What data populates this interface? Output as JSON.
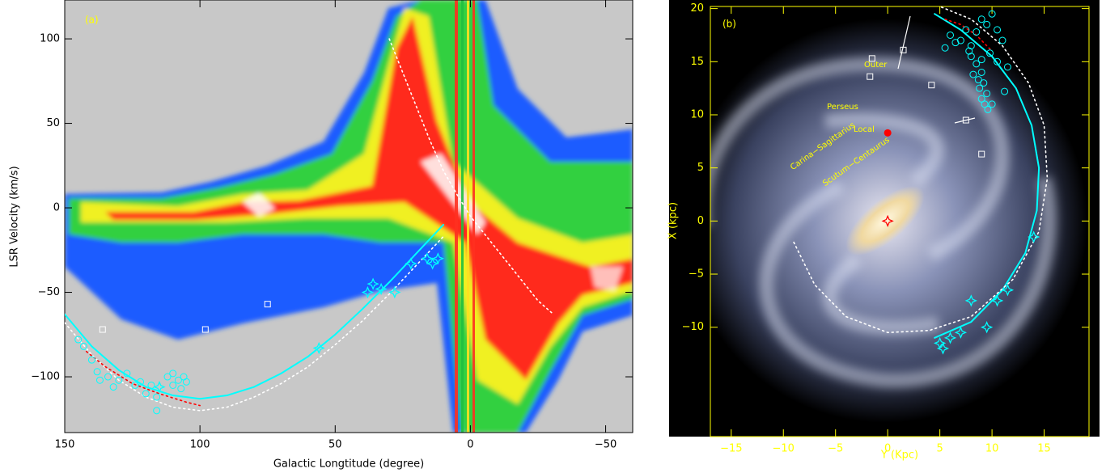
{
  "chart_data": [
    {
      "type": "scatter",
      "xlabel": "Galactic Longtitude (degree)",
      "ylabel": "LSR Velocity (km/s)",
      "annotations": [
        "(a)"
      ],
      "axis_color": "#000000",
      "annotation_color": "#ffff00",
      "xlim": [
        150,
        -60
      ],
      "ylim": [
        -133,
        123
      ],
      "xticks": [
        150,
        100,
        50,
        0,
        {
          "value": -50,
          "label": "−50"
        }
      ],
      "yticks": [
        {
          "value": -100,
          "label": "−100"
        },
        {
          "value": -50,
          "label": "−50"
        },
        0,
        50,
        100
      ],
      "series": [
        {
          "marker": "line",
          "color": "#00ffff",
          "x": [
            150,
            140,
            130,
            120,
            110,
            100,
            90,
            80,
            70,
            60,
            50,
            40,
            30,
            20,
            10
          ],
          "y": [
            -63,
            -82,
            -96,
            -106,
            -111,
            -113,
            -111,
            -106,
            -98,
            -88,
            -75,
            -60,
            -44,
            -27,
            -10
          ]
        },
        {
          "marker": "dotted",
          "color": "#ffffff",
          "x": [
            150,
            140,
            130,
            120,
            110,
            100,
            90,
            80,
            70,
            60,
            50,
            40,
            30,
            20,
            10
          ],
          "y": [
            -68,
            -87,
            -102,
            -112,
            -118,
            -120,
            -118,
            -112,
            -104,
            -94,
            -81,
            -67,
            -51,
            -34,
            -17
          ]
        },
        {
          "marker": "dotted",
          "color": "#ffffff",
          "x": [
            30,
            25,
            20,
            15,
            10,
            5,
            0,
            -5,
            -10,
            -15,
            -20,
            -25,
            -30
          ],
          "y": [
            100,
            80,
            60,
            40,
            22,
            8,
            -5,
            -15,
            -25,
            -35,
            -45,
            -55,
            -62
          ]
        },
        {
          "marker": "dotted",
          "color": "#ff0000",
          "x": [
            142,
            135,
            125,
            115,
            105,
            100
          ],
          "y": [
            -85,
            -94,
            -104,
            -110,
            -115,
            -117
          ]
        },
        {
          "marker": "square",
          "color": "#ffffff",
          "x": [
            136,
            98,
            75
          ],
          "y": [
            -72,
            -72,
            -57
          ]
        },
        {
          "marker": "circle",
          "color": "#00ffff",
          "x": [
            145,
            143,
            140,
            138,
            137,
            134,
            132,
            130,
            127,
            124,
            122,
            120,
            118,
            116,
            116,
            112,
            110,
            108,
            106,
            105,
            107,
            110
          ],
          "y": [
            -78,
            -82,
            -90,
            -97,
            -102,
            -100,
            -106,
            -102,
            -98,
            -105,
            -103,
            -110,
            -105,
            -112,
            -120,
            -100,
            -98,
            -102,
            -100,
            -103,
            -107,
            -105
          ]
        },
        {
          "marker": "star",
          "color": "#00ffff",
          "x": [
            115,
            56,
            38,
            36,
            33,
            28,
            22,
            16,
            14,
            12
          ],
          "y": [
            -106,
            -83,
            -50,
            -45,
            -48,
            -50,
            -33,
            -30,
            -33,
            -30
          ]
        }
      ]
    },
    {
      "type": "scatter",
      "xlabel": "Y (Kpc)",
      "ylabel": "X (kpc)",
      "annotations": [
        "(b)",
        "Outer",
        "Perseus",
        "Local",
        "Carina−Sagittarius",
        "Scutum−Centaurus"
      ],
      "axis_color": "#ffff00",
      "annotation_color": "#ffff00",
      "xlim": [
        -17,
        19.3
      ],
      "ylim": [
        -20.3,
        20.2
      ],
      "xticks": [
        {
          "value": -15,
          "label": "−15"
        },
        {
          "value": -10,
          "label": "−10"
        },
        {
          "value": -5,
          "label": "−5"
        },
        0,
        5,
        10,
        15
      ],
      "yticks": [
        {
          "value": -10,
          "label": "−10"
        },
        {
          "value": -5,
          "label": "−5"
        },
        0,
        5,
        10,
        15,
        20
      ],
      "series": [
        {
          "marker": "line",
          "color": "#00ffff",
          "x": [
            4.5,
            8,
            11,
            13.2,
            14.3,
            14.5,
            13.8,
            12.3,
            10,
            7,
            4.5
          ],
          "y": [
            -11,
            -9.5,
            -6.5,
            -3,
            1,
            5,
            9,
            12.5,
            15.5,
            18,
            19.5
          ]
        },
        {
          "marker": "dotted",
          "color": "#ffffff",
          "x": [
            -9,
            -7,
            -4,
            0,
            4,
            8,
            12,
            14.5,
            15.3,
            15,
            13.5,
            11,
            8,
            5
          ],
          "y": [
            -2,
            -6,
            -9,
            -10.5,
            -10.3,
            -9,
            -5.5,
            -1,
            4,
            9,
            13,
            16.5,
            19,
            20.2
          ]
        },
        {
          "marker": "dotted",
          "color": "#ff0000",
          "x": [
            5.5,
            7,
            8.5,
            10
          ],
          "y": [
            19,
            18.5,
            17.5,
            16
          ]
        },
        {
          "marker": "square",
          "color": "#ffffff",
          "x": [
            -1.5,
            1.5,
            -1.7,
            4.2,
            7.5,
            9
          ],
          "y": [
            15.3,
            16.1,
            13.6,
            12.8,
            9.5,
            6.3
          ]
        },
        {
          "marker": "circle",
          "color": "#00ffff",
          "x": [
            6,
            7,
            7.5,
            8,
            8.5,
            9,
            9.5,
            10,
            10.5,
            11,
            11.5,
            8,
            8.5,
            9,
            9.2,
            9.5,
            8.8,
            9,
            9.3,
            9.6,
            10,
            7.8,
            8.2,
            6.5,
            5.5,
            9.8,
            10.5,
            11.2,
            9,
            8.7
          ],
          "y": [
            17.5,
            17,
            18,
            16.5,
            17.8,
            19,
            18.5,
            19.5,
            18,
            17,
            14.5,
            15.5,
            14.8,
            14,
            13,
            12,
            12.5,
            11.5,
            11,
            10.5,
            11,
            16,
            13.8,
            16.8,
            16.3,
            15.8,
            15,
            12.2,
            15.2,
            13.3
          ]
        },
        {
          "marker": "star",
          "color": "#00ffff",
          "x": [
            14,
            11.5,
            10.5,
            8,
            9.5,
            7,
            6,
            5,
            5.3
          ],
          "y": [
            -1.5,
            -6.5,
            -7.5,
            -7.5,
            -10,
            -10.5,
            -11,
            -11.5,
            -12
          ]
        },
        {
          "marker": "dot",
          "color": "#ff0000",
          "x": [
            0
          ],
          "y": [
            8.3
          ]
        },
        {
          "marker": "star",
          "color": "#ff0000",
          "x": [
            0
          ],
          "y": [
            0
          ]
        }
      ]
    }
  ]
}
